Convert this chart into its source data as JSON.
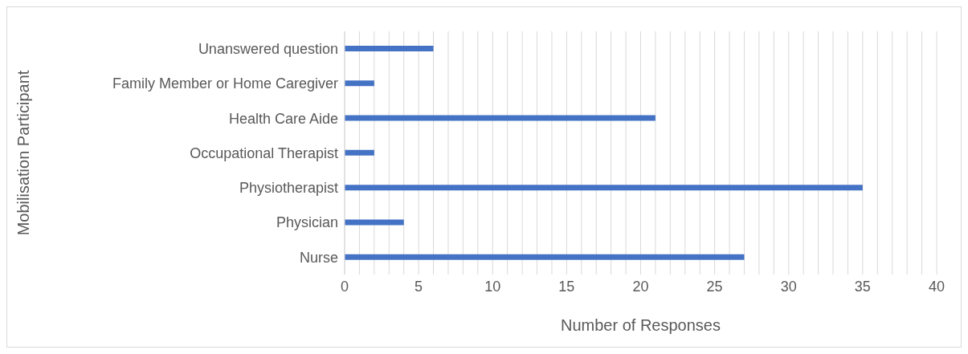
{
  "chart_data": {
    "type": "bar",
    "orientation": "horizontal",
    "xlabel": "Number of Responses",
    "ylabel": "Mobilisation Participant",
    "categories": [
      "Unanswered question",
      "Family Member or Home Caregiver",
      "Health Care Aide",
      "Occupational Therapist",
      "Physiotherapist",
      "Physician",
      "Nurse"
    ],
    "values": [
      6,
      2,
      21,
      2,
      35,
      4,
      27
    ],
    "color": "#4472c4",
    "xlim": [
      0,
      40
    ],
    "xticks": [
      0,
      {
        "value": 1,
        "label": null
      },
      {
        "value": 2,
        "label": null
      },
      {
        "value": 3,
        "label": null
      },
      {
        "value": 4,
        "label": null
      },
      5,
      {
        "value": 6,
        "label": null
      },
      {
        "value": 7,
        "label": null
      },
      {
        "value": 8,
        "label": null
      },
      {
        "value": 9,
        "label": null
      },
      10,
      {
        "value": 11,
        "label": null
      },
      {
        "value": 12,
        "label": null
      },
      {
        "value": 13,
        "label": null
      },
      {
        "value": 14,
        "label": null
      },
      15,
      {
        "value": 16,
        "label": null
      },
      {
        "value": 17,
        "label": null
      },
      {
        "value": 18,
        "label": null
      },
      {
        "value": 19,
        "label": null
      },
      20,
      {
        "value": 21,
        "label": null
      },
      {
        "value": 22,
        "label": null
      },
      {
        "value": 23,
        "label": null
      },
      {
        "value": 24,
        "label": null
      },
      25,
      {
        "value": 26,
        "label": null
      },
      {
        "value": 27,
        "label": null
      },
      {
        "value": 28,
        "label": null
      },
      {
        "value": 29,
        "label": null
      },
      30,
      {
        "value": 31,
        "label": null
      },
      {
        "value": 32,
        "label": null
      },
      {
        "value": 33,
        "label": null
      },
      {
        "value": 34,
        "label": null
      },
      35,
      {
        "value": 36,
        "label": null
      },
      {
        "value": 37,
        "label": null
      },
      {
        "value": 38,
        "label": null
      },
      {
        "value": 39,
        "label": null
      },
      40
    ],
    "grid": "x",
    "legend": false
  }
}
